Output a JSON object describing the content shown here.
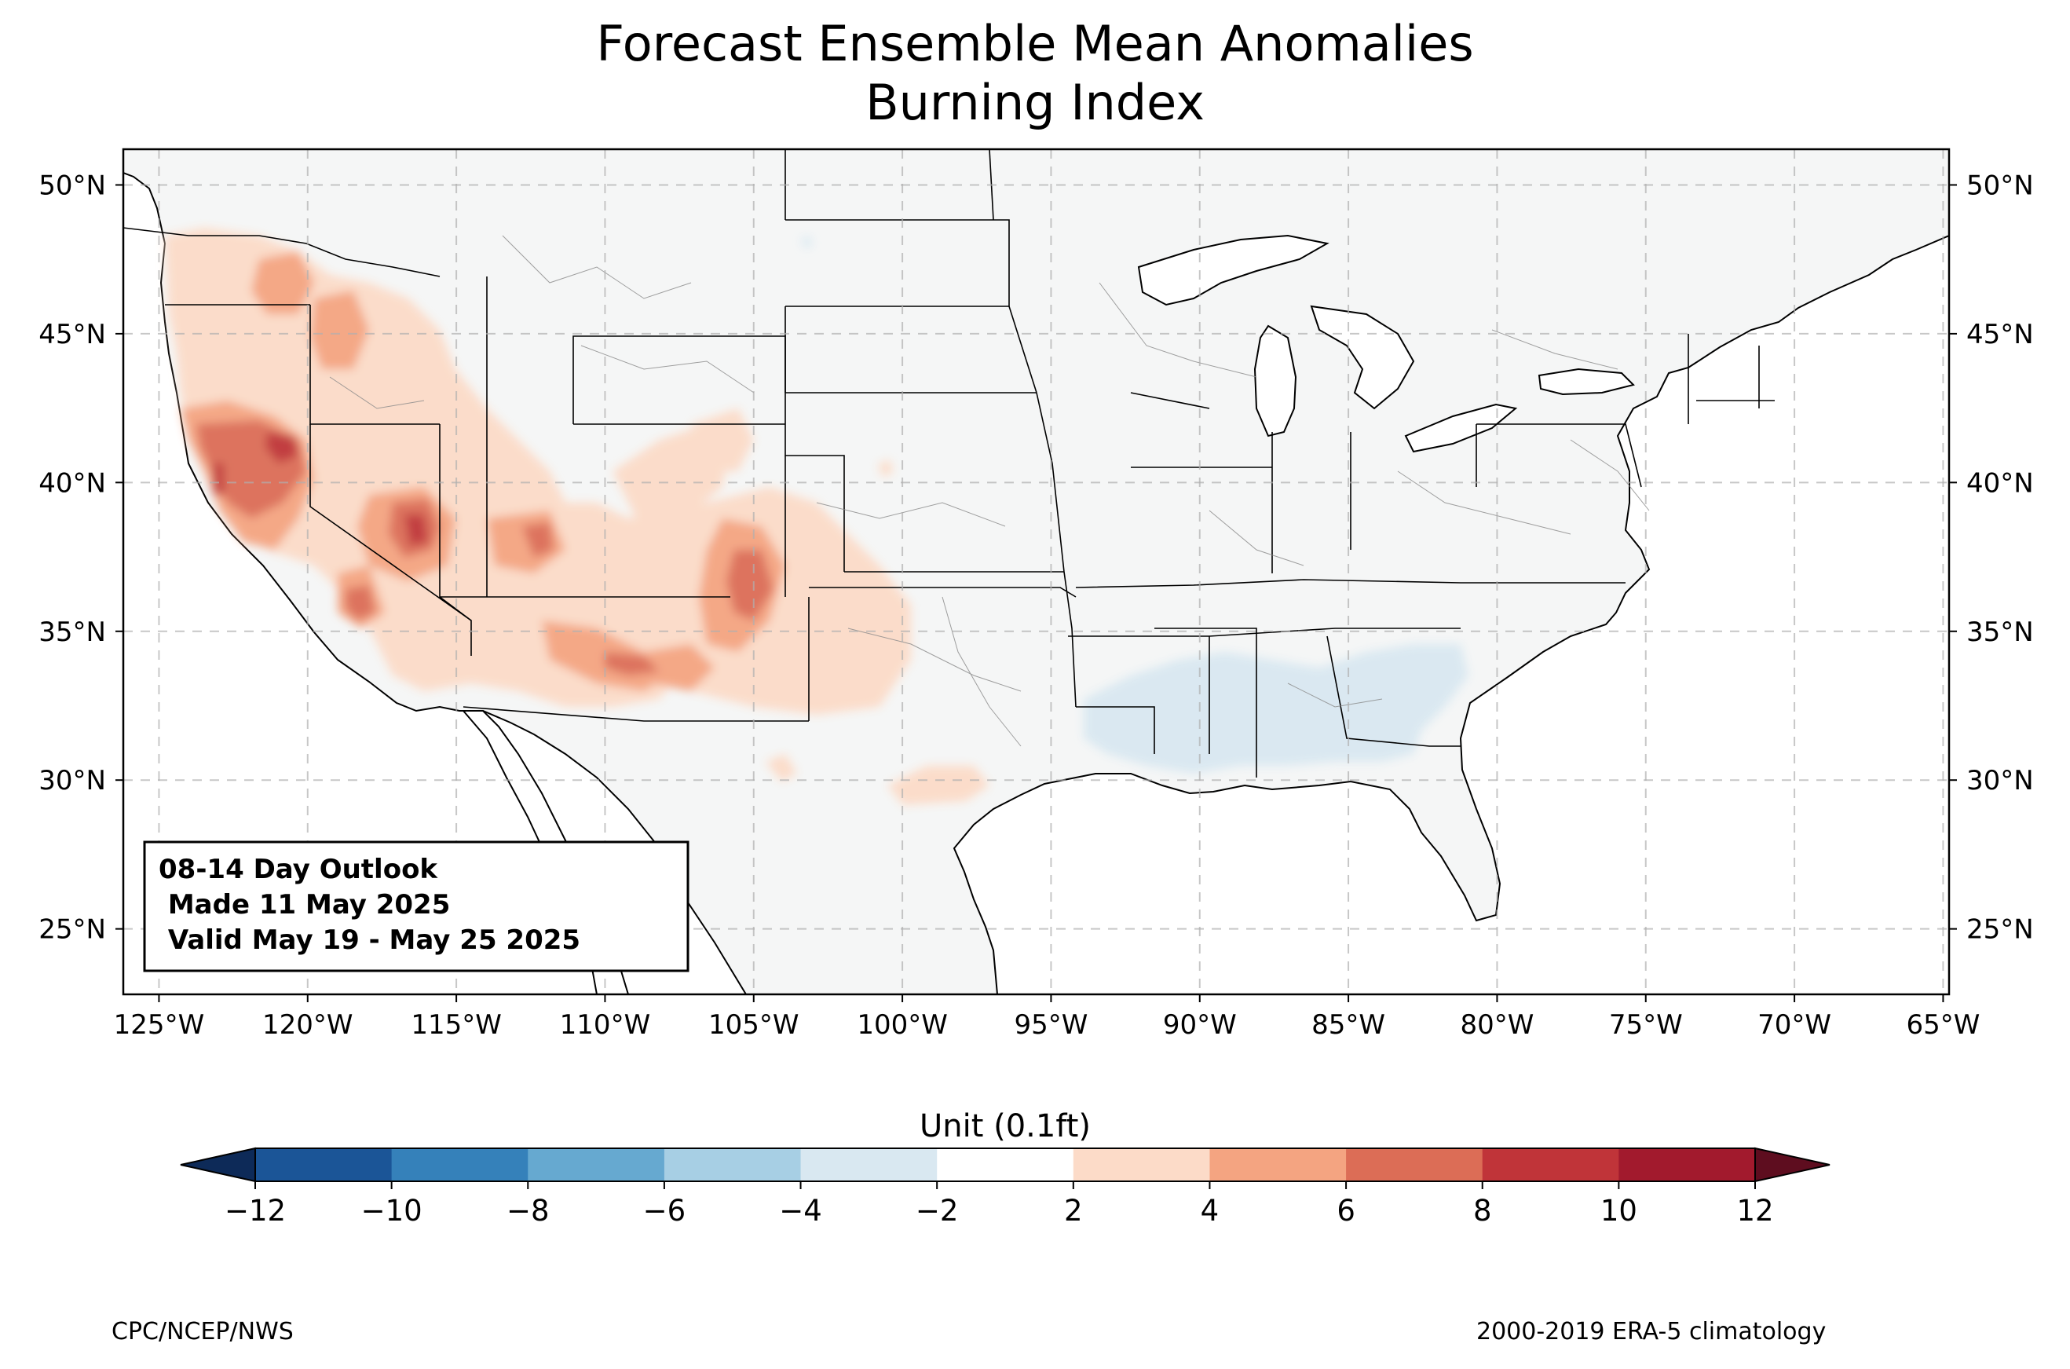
{
  "title": "Forecast Ensemble Mean Anomalies",
  "subtitle": "Burning Index",
  "outlook": {
    "line1": "08-14 Day Outlook",
    "line2": " Made 11 May 2025",
    "line3": " Valid May 19 - May 25 2025"
  },
  "map": {
    "lon_ticks": [
      "125°W",
      "120°W",
      "115°W",
      "110°W",
      "105°W",
      "100°W",
      "95°W",
      "90°W",
      "85°W",
      "80°W",
      "75°W",
      "70°W",
      "65°W"
    ],
    "lat_ticks": [
      "50°N",
      "45°N",
      "40°N",
      "35°N",
      "30°N",
      "25°N"
    ],
    "extent": {
      "lon": [
        -126.2,
        -64.8
      ],
      "lat": [
        22.8,
        51.2
      ]
    },
    "gridlines": true,
    "land_color": "#f5f6f6",
    "anomaly_regions": [
      {
        "area": "Northern California / NW Nevada",
        "level": "8 to 10"
      },
      {
        "area": "Sierra Nevada, California",
        "level": "6 to 8"
      },
      {
        "area": "Central Nevada",
        "level": "6 to 10"
      },
      {
        "area": "Southern Nevada / Southeast California",
        "level": "4 to 8"
      },
      {
        "area": "Oregon / Idaho",
        "level": "2 to 6"
      },
      {
        "area": "Southern Utah",
        "level": "2 to 6"
      },
      {
        "area": "Western Colorado",
        "level": "2 to 6"
      },
      {
        "area": "Northeast New Mexico",
        "level": "4 to 8"
      },
      {
        "area": "Northern Arizona / New Mexico",
        "level": "2 to 6"
      },
      {
        "area": "South Texas",
        "level": "2 to 4"
      },
      {
        "area": "Louisiana / Mississippi / Alabama / Georgia",
        "level": "-4 to -2"
      }
    ]
  },
  "colorbar": {
    "label": "Unit (0.1ft)",
    "ticks": [
      "−12",
      "−10",
      "−8",
      "−6",
      "−4",
      "−2",
      "2",
      "4",
      "6",
      "8",
      "10",
      "12"
    ],
    "colors": [
      "#1b5597",
      "#3581ba",
      "#66a9d0",
      "#a7cfe4",
      "#d9e8f1",
      "#ffffff",
      "#fcdbc8",
      "#f4a481",
      "#dc6d56",
      "#c03439",
      "#a21a2d"
    ],
    "under_color": "#0d2a58",
    "over_color": "#5e0d1f"
  },
  "credits": {
    "left": "CPC/NCEP/NWS",
    "right": "2000-2019 ERA-5 climatology"
  }
}
